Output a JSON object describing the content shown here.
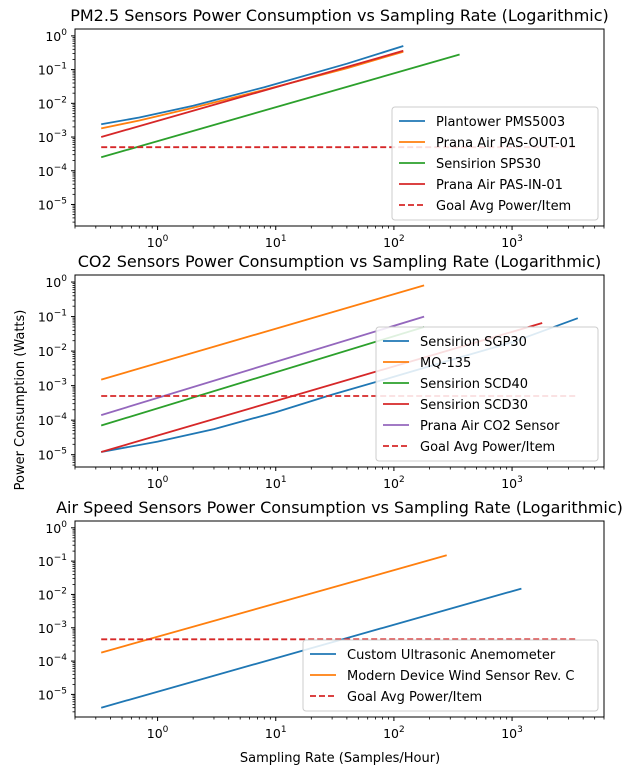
{
  "figure": {
    "ylabel": "Power Consumption (Watts)",
    "xlabel": "Sampling Rate (Samples/Hour)"
  },
  "chart_data": [
    {
      "type": "line",
      "title": "PM2.5 Sensors Power Consumption vs Sampling Rate (Logarithmic)",
      "xscale": "log",
      "yscale": "log",
      "xlim": [
        0.2,
        6000
      ],
      "ylim": [
        2.3e-06,
        1.6
      ],
      "xticks": [
        {
          "v": 1,
          "e": "0"
        },
        {
          "v": 10,
          "e": "1"
        },
        {
          "v": 100,
          "e": "2"
        },
        {
          "v": 1000,
          "e": "3"
        }
      ],
      "yticks": [
        {
          "v": 1e-05,
          "e": "−5"
        },
        {
          "v": 0.0001,
          "e": "−4"
        },
        {
          "v": 0.001,
          "e": "−3"
        },
        {
          "v": 0.01,
          "e": "−2"
        },
        {
          "v": 0.1,
          "e": "−1"
        },
        {
          "v": 1,
          "e": "0"
        }
      ],
      "legend_position": "lower-right",
      "series": [
        {
          "name": "Plantower PMS5003",
          "color": "#1f77b4",
          "dash": "solid",
          "x": [
            0.333,
            0.7,
            2,
            8,
            40,
            120
          ],
          "y": [
            0.0024,
            0.0038,
            0.0085,
            0.03,
            0.15,
            0.5
          ]
        },
        {
          "name": "Prana Air PAS-OUT-01",
          "color": "#ff7f0e",
          "dash": "solid",
          "x": [
            0.333,
            0.7,
            2,
            8,
            40,
            120
          ],
          "y": [
            0.0018,
            0.0031,
            0.0074,
            0.025,
            0.11,
            0.34
          ]
        },
        {
          "name": "Sensirion SPS30",
          "color": "#2ca02c",
          "dash": "solid",
          "x": [
            0.333,
            360
          ],
          "y": [
            0.00025,
            0.28
          ]
        },
        {
          "name": "Prana Air PAS-IN-01",
          "color": "#d62728",
          "dash": "solid",
          "x": [
            0.333,
            120
          ],
          "y": [
            0.001,
            0.36
          ]
        },
        {
          "name": "Goal Avg Power/Item",
          "color": "#d62728",
          "dash": "dashed",
          "x": [
            0.333,
            3600
          ],
          "y": [
            0.0005,
            0.0005
          ]
        }
      ]
    },
    {
      "type": "line",
      "title": "CO2 Sensors Power Consumption vs Sampling Rate (Logarithmic)",
      "xscale": "log",
      "yscale": "log",
      "xlim": [
        0.2,
        6000
      ],
      "ylim": [
        4.4e-06,
        1.6
      ],
      "xticks": [
        {
          "v": 1,
          "e": "0"
        },
        {
          "v": 10,
          "e": "1"
        },
        {
          "v": 100,
          "e": "2"
        },
        {
          "v": 1000,
          "e": "3"
        }
      ],
      "yticks": [
        {
          "v": 1e-05,
          "e": "−5"
        },
        {
          "v": 0.0001,
          "e": "−4"
        },
        {
          "v": 0.001,
          "e": "−3"
        },
        {
          "v": 0.01,
          "e": "−2"
        },
        {
          "v": 0.1,
          "e": "−1"
        },
        {
          "v": 1,
          "e": "0"
        }
      ],
      "legend_position": "lower-right",
      "series": [
        {
          "name": "Sensirion SGP30",
          "color": "#1f77b4",
          "dash": "solid",
          "x": [
            0.333,
            1,
            3,
            10,
            30,
            100,
            300,
            1000,
            3600
          ],
          "y": [
            1.2e-05,
            2.4e-05,
            5.5e-05,
            0.00017,
            0.00055,
            0.0018,
            0.0055,
            0.018,
            0.09
          ]
        },
        {
          "name": "MQ-135",
          "color": "#ff7f0e",
          "dash": "solid",
          "x": [
            0.333,
            180
          ],
          "y": [
            0.0015,
            0.8
          ]
        },
        {
          "name": "Sensirion SCD40",
          "color": "#2ca02c",
          "dash": "solid",
          "x": [
            0.333,
            180
          ],
          "y": [
            7e-05,
            0.05
          ]
        },
        {
          "name": "Sensirion SCD30",
          "color": "#d62728",
          "dash": "solid",
          "x": [
            0.333,
            1800
          ],
          "y": [
            1.2e-05,
            0.065
          ]
        },
        {
          "name": "Prana Air CO2 Sensor",
          "color": "#9467bd",
          "dash": "solid",
          "x": [
            0.333,
            180
          ],
          "y": [
            0.00014,
            0.1
          ]
        },
        {
          "name": "Goal Avg Power/Item",
          "color": "#d62728",
          "dash": "dashed",
          "x": [
            0.333,
            3600
          ],
          "y": [
            0.0005,
            0.0005
          ]
        }
      ]
    },
    {
      "type": "line",
      "title": "Air Speed Sensors Power Consumption vs Sampling Rate (Logarithmic)",
      "xscale": "log",
      "yscale": "log",
      "xlim": [
        0.2,
        6000
      ],
      "ylim": [
        2.1e-06,
        1.6
      ],
      "xticks": [
        {
          "v": 1,
          "e": "0"
        },
        {
          "v": 10,
          "e": "1"
        },
        {
          "v": 100,
          "e": "2"
        },
        {
          "v": 1000,
          "e": "3"
        }
      ],
      "yticks": [
        {
          "v": 1e-05,
          "e": "−5"
        },
        {
          "v": 0.0001,
          "e": "−4"
        },
        {
          "v": 0.001,
          "e": "−3"
        },
        {
          "v": 0.01,
          "e": "−2"
        },
        {
          "v": 0.1,
          "e": "−1"
        },
        {
          "v": 1,
          "e": "0"
        }
      ],
      "legend_position": "lower-right",
      "series": [
        {
          "name": "Custom Ultrasonic Anemometer",
          "color": "#1f77b4",
          "dash": "solid",
          "x": [
            0.333,
            1200
          ],
          "y": [
            4e-06,
            0.015
          ]
        },
        {
          "name": "Modern Device Wind Sensor Rev. C",
          "color": "#ff7f0e",
          "dash": "solid",
          "x": [
            0.333,
            280
          ],
          "y": [
            0.00018,
            0.15
          ]
        },
        {
          "name": "Goal Avg Power/Item",
          "color": "#d62728",
          "dash": "dashed",
          "x": [
            0.333,
            3600
          ],
          "y": [
            0.00045,
            0.00045
          ]
        }
      ]
    }
  ]
}
